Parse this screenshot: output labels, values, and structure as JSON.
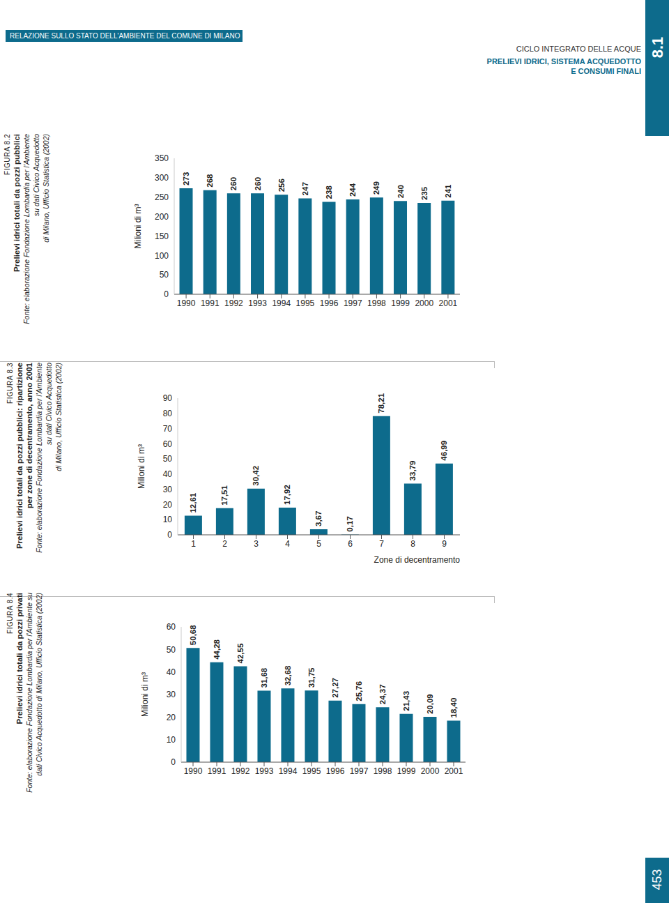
{
  "header": {
    "report": "RELAZIONE SULLO STATO DELL'AMBIENTE DEL COMUNE DI MILANO",
    "chapter": "CICLO INTEGRATO DELLE ACQUE",
    "section": [
      "PRELIEVI IDRICI, SISTEMA ACQUEDOTTO",
      "E CONSUMI FINALI"
    ],
    "tab": "8.1",
    "page_number": "453"
  },
  "chart_data": [
    {
      "type": "bar",
      "figure": "FIGURA 8.2",
      "title": [
        "Prelievi idrici totali da pozzi pubblici"
      ],
      "source": [
        "Fonte: elaborazione Fondazione Lombardia per l'Ambiente",
        "su dati Civico Acquedotto",
        "di Milano, Ufficio Statistica (2002)"
      ],
      "y_label": "Milioni di m³",
      "categories": [
        "1990",
        "1991",
        "1992",
        "1993",
        "1994",
        "1995",
        "1996",
        "1997",
        "1998",
        "1999",
        "2000",
        "2001"
      ],
      "values": [
        273,
        268,
        260,
        260,
        256,
        247,
        238,
        244,
        249,
        240,
        235,
        241
      ],
      "color": "#0d6b8c",
      "ylim": [
        0,
        350
      ],
      "yticks": [
        0,
        50,
        100,
        150,
        200,
        250,
        300,
        350
      ],
      "data_labels": true
    },
    {
      "type": "bar",
      "figure": "FIGURA 8.3",
      "title": [
        "Prelievi idrici totali da pozzi pubblici: ripartizione",
        "per zone di decentramento, anno 2001"
      ],
      "source": [
        "Fonte: elaborazione Fondazione Lombardia per l'Ambiente",
        "su dati Civico Acquedotto",
        "di Milano, Ufficio Statistica (2002)"
      ],
      "y_label": "Milioni di m³",
      "x_label": "Zone di decentramento",
      "categories": [
        "1",
        "2",
        "3",
        "4",
        "5",
        "6",
        "7",
        "8",
        "9"
      ],
      "values": [
        12.61,
        17.51,
        30.42,
        17.92,
        3.67,
        0.17,
        78.21,
        33.79,
        46.99
      ],
      "value_labels": [
        "12,61",
        "17,51",
        "30,42",
        "17,92",
        "3,67",
        "0,17",
        "78,21",
        "33,79",
        "46,99"
      ],
      "color": "#0d6b8c",
      "ylim": [
        0,
        90
      ],
      "yticks": [
        0,
        10,
        20,
        30,
        40,
        50,
        60,
        70,
        80,
        90
      ],
      "data_labels": true
    },
    {
      "type": "bar",
      "figure": "FIGURA 8.4",
      "title": [
        "Prelievi idrici totali da pozzi privati"
      ],
      "source": [
        "Fonte: elaborazione Fondazione Lombardia per l'Ambiente su",
        "dati Civico Acquedotto di Milano, Ufficio Statistica (2002)"
      ],
      "y_label": "Milioni di m³",
      "categories": [
        "1990",
        "1991",
        "1992",
        "1993",
        "1994",
        "1995",
        "1996",
        "1997",
        "1998",
        "1999",
        "2000",
        "2001"
      ],
      "values": [
        50.68,
        44.28,
        42.55,
        31.68,
        32.68,
        31.75,
        27.27,
        25.76,
        24.37,
        21.43,
        20.09,
        18.4
      ],
      "value_labels": [
        "50,68",
        "44,28",
        "42,55",
        "31,68",
        "32,68",
        "31,75",
        "27,27",
        "25,76",
        "24,37",
        "21,43",
        "20,09",
        "18,40"
      ],
      "color": "#0d6b8c",
      "ylim": [
        0,
        60
      ],
      "yticks": [
        0,
        10,
        20,
        30,
        40,
        50,
        60
      ],
      "data_labels": true
    }
  ]
}
